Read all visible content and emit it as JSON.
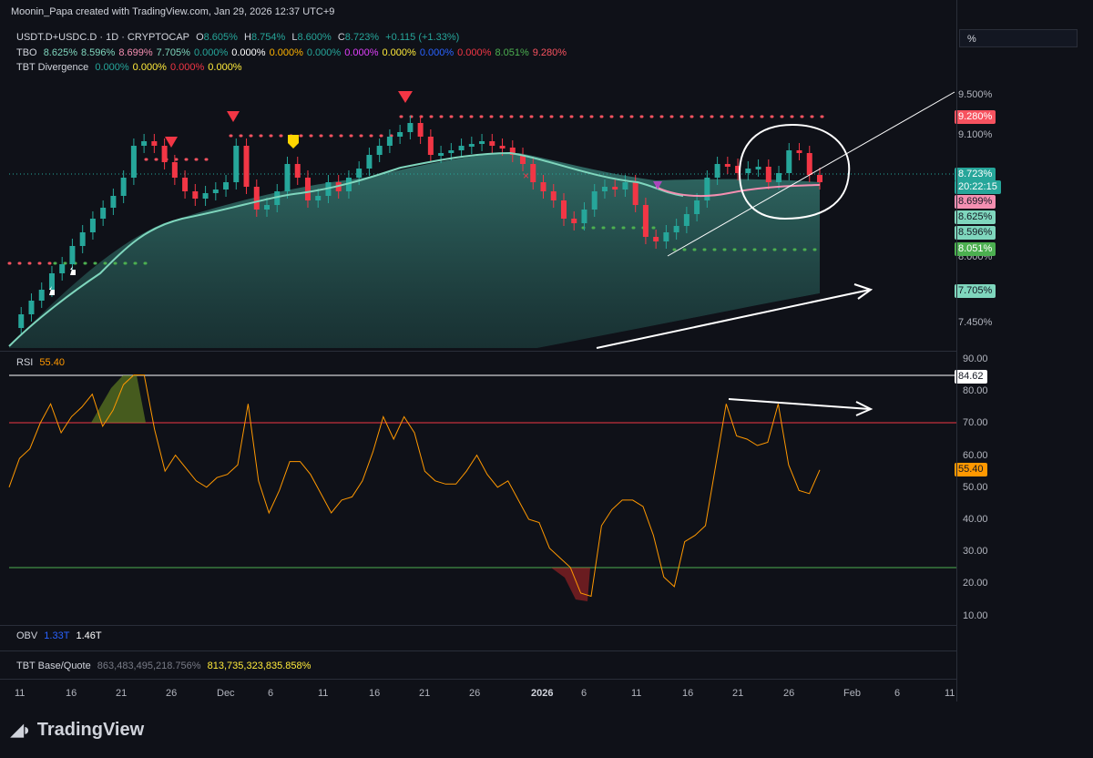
{
  "header": {
    "created_by": "Moonin_Papa created with TradingView.com, Jan 29, 2026 12:37 UTC+9"
  },
  "symbol_legend": {
    "symbol": "USDT.D+USDC.D · 1D · CRYPTOCAP",
    "open_label": "O",
    "open": "8.605%",
    "high_label": "H",
    "high": "8.754%",
    "low_label": "L",
    "low": "8.600%",
    "close_label": "C",
    "close": "8.723%",
    "change": "+0.115 (+1.33%)"
  },
  "tbo_legend": {
    "name": "TBO",
    "values": [
      {
        "text": "8.625%",
        "color": "#7fd6bd"
      },
      {
        "text": "8.596%",
        "color": "#7fd6bd"
      },
      {
        "text": "8.699%",
        "color": "#f48fb1"
      },
      {
        "text": "7.705%",
        "color": "#7fd6bd"
      },
      {
        "text": "0.000%",
        "color": "#26a69a"
      },
      {
        "text": "0.000%",
        "color": "#ffffff"
      },
      {
        "text": "0.000%",
        "color": "#ffb300"
      },
      {
        "text": "0.000%",
        "color": "#26a69a"
      },
      {
        "text": "0.000%",
        "color": "#e040fb"
      },
      {
        "text": "0.000%",
        "color": "#ffeb3b"
      },
      {
        "text": "0.000%",
        "color": "#2962ff"
      },
      {
        "text": "0.000%",
        "color": "#f23645"
      },
      {
        "text": "8.051%",
        "color": "#4caf50"
      },
      {
        "text": "9.280%",
        "color": "#f7525f"
      }
    ]
  },
  "tbt_divergence_legend": {
    "name": "TBT Divergence",
    "values": [
      {
        "text": "0.000%",
        "color": "#26a69a"
      },
      {
        "text": "0.000%",
        "color": "#ffeb3b"
      },
      {
        "text": "0.000%",
        "color": "#f23645"
      },
      {
        "text": "0.000%",
        "color": "#ffeb3b"
      }
    ]
  },
  "scale_mode_box": "%",
  "price_axis": [
    "9.500%",
    "9.100%",
    "8.000%",
    "7.450%"
  ],
  "price_tags": [
    {
      "text": "9.280%",
      "bg": "#f7525f",
      "fg": "#ffffff",
      "top": 121
    },
    {
      "text": "8.723%",
      "bg": "#26a69a",
      "fg": "#ffffff",
      "top": 184
    },
    {
      "text": "20:22:15",
      "bg": "#26a69a",
      "fg": "#ffffff",
      "top": 198
    },
    {
      "text": "8.699%",
      "bg": "#f48fb1",
      "fg": "#131722",
      "top": 214
    },
    {
      "text": "8.625%",
      "bg": "#7fd6bd",
      "fg": "#131722",
      "top": 231
    },
    {
      "text": "8.596%",
      "bg": "#7fd6bd",
      "fg": "#131722",
      "top": 248
    },
    {
      "text": "8.051%",
      "bg": "#4caf50",
      "fg": "#ffffff",
      "top": 266
    },
    {
      "text": "7.705%",
      "bg": "#7fd6bd",
      "fg": "#131722",
      "top": 312
    }
  ],
  "rsi": {
    "label": "RSI",
    "value": "55.40",
    "axis": [
      "90.00",
      "80.00",
      "70.00",
      "60.00",
      "50.00",
      "40.00",
      "30.00",
      "20.00",
      "10.00"
    ],
    "tag_high": "84.62",
    "tag_value": "55.40",
    "series": [
      50,
      59,
      62,
      70,
      76,
      67,
      72,
      75,
      79,
      69,
      74,
      82,
      85,
      85,
      68,
      55,
      60,
      56,
      52,
      50,
      53,
      54,
      57,
      76,
      52,
      42,
      49,
      58,
      58,
      54,
      48,
      42,
      46,
      47,
      52,
      61,
      72,
      65,
      72,
      67,
      55,
      52,
      51,
      51,
      55,
      60,
      54,
      50,
      52,
      46,
      40,
      39,
      31,
      28,
      25,
      17,
      16,
      38,
      43,
      46,
      46,
      44,
      35,
      22,
      19,
      33,
      35,
      38,
      57,
      76,
      66,
      65,
      63,
      64,
      76,
      57,
      49,
      48,
      55.4
    ]
  },
  "obv": {
    "label": "OBV",
    "v1": "1.33T",
    "v2": "1.46T"
  },
  "tbt_base_quote": {
    "label": "TBT Base/Quote",
    "v1": "863,483,495,218.756%",
    "v2": "813,735,323,835.858%"
  },
  "time_axis": [
    {
      "t": "11",
      "x": 22
    },
    {
      "t": "16",
      "x": 78
    },
    {
      "t": "21",
      "x": 133
    },
    {
      "t": "26",
      "x": 188
    },
    {
      "t": "Dec",
      "x": 244
    },
    {
      "t": "6",
      "x": 300
    },
    {
      "t": "11",
      "x": 355
    },
    {
      "t": "16",
      "x": 411
    },
    {
      "t": "21",
      "x": 466
    },
    {
      "t": "26",
      "x": 521
    },
    {
      "t": "2026",
      "x": 589
    },
    {
      "t": "6",
      "x": 644
    },
    {
      "t": "11",
      "x": 699
    },
    {
      "t": "16",
      "x": 755
    },
    {
      "t": "21",
      "x": 810
    },
    {
      "t": "26",
      "x": 866
    },
    {
      "t": "Feb",
      "x": 932
    },
    {
      "t": "6",
      "x": 988
    },
    {
      "t": "11",
      "x": 1043
    }
  ],
  "brand": "TradingView"
}
